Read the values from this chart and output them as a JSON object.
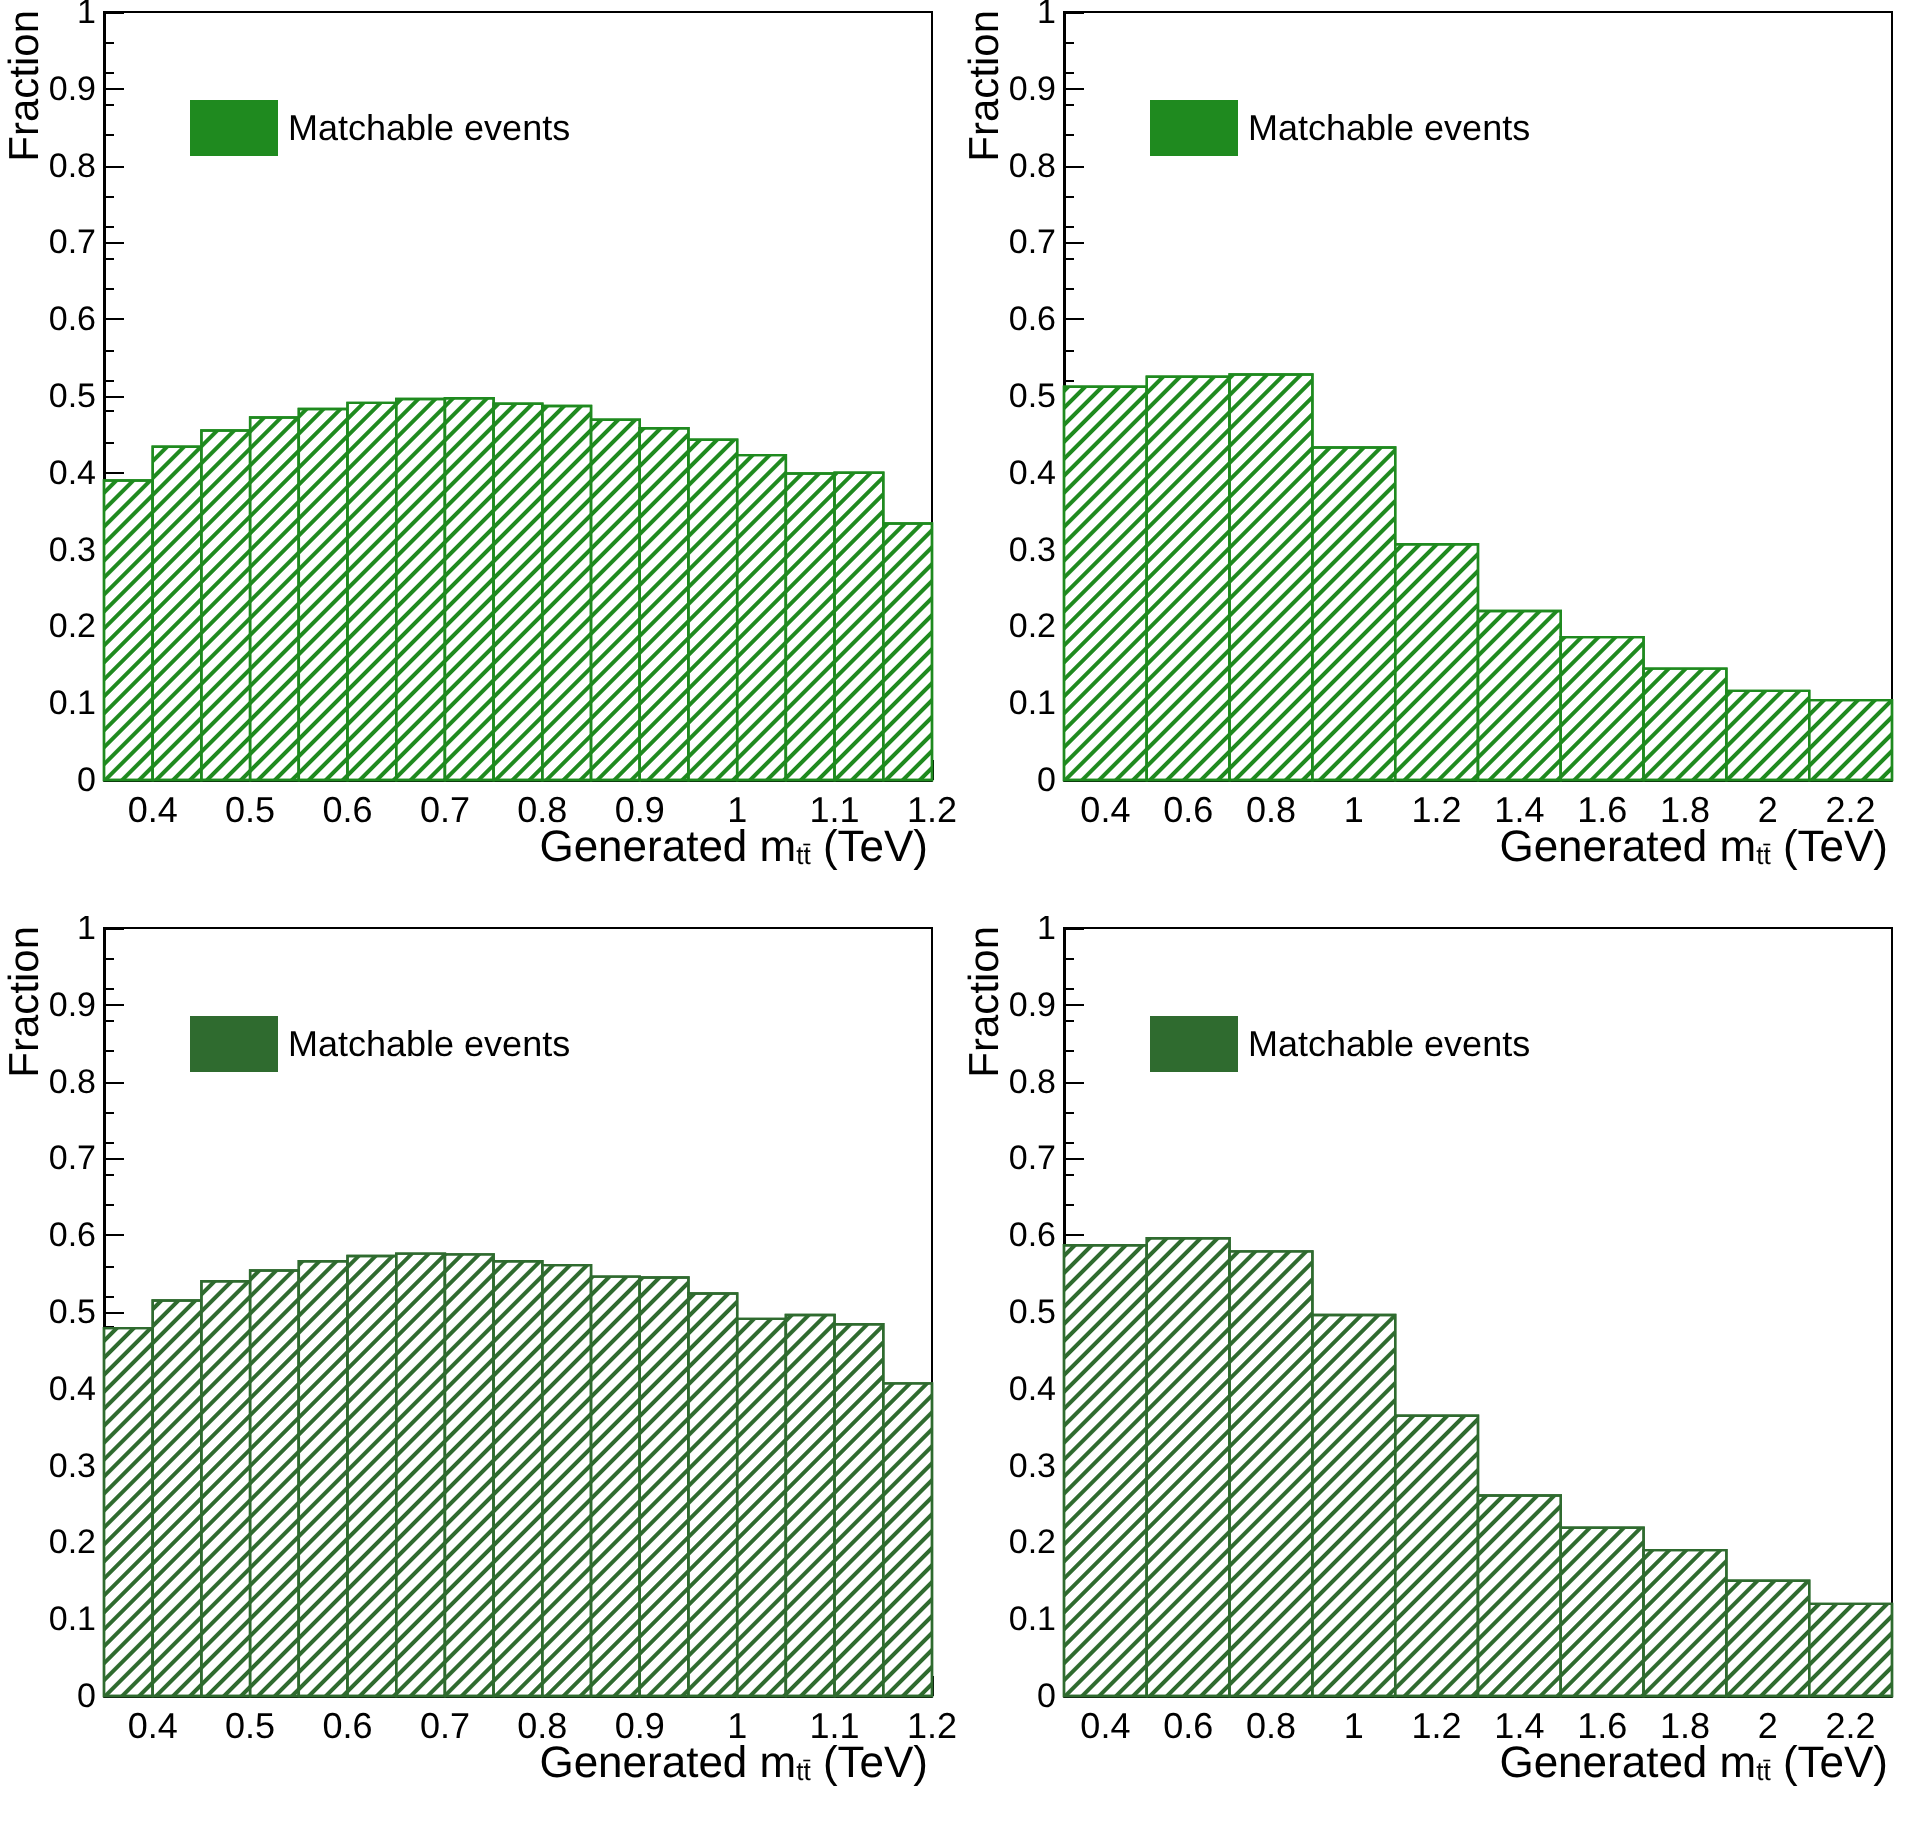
{
  "chart_data": [
    {
      "type": "histogram",
      "xlabel": "Generated m$_{tt̄}$ (TeV)",
      "ylabel": "Fraction",
      "legend": "top left",
      "grid": false,
      "bins": [
        0.35,
        0.4,
        0.45,
        0.5,
        0.55,
        0.6,
        0.65,
        0.7,
        0.75,
        0.8,
        0.85,
        0.9,
        0.95,
        1.0,
        1.05,
        1.1,
        1.15,
        1.2
      ],
      "series": [
        {
          "name": "Matchable events",
          "color": "#1f8a1f",
          "values": [
            0.39,
            0.434,
            0.455,
            0.472,
            0.483,
            0.491,
            0.496,
            0.497,
            0.49,
            0.487,
            0.469,
            0.458,
            0.443,
            0.423,
            0.399,
            0.4,
            0.334
          ]
        }
      ],
      "xlim": [
        0.35,
        1.2
      ],
      "xticks": [
        0.4,
        0.5,
        0.6,
        0.7,
        0.8,
        0.9,
        1,
        1.1,
        1.2
      ],
      "ylim": [
        0,
        1
      ],
      "yticks": [
        0,
        0.1,
        0.2,
        0.3,
        0.4,
        0.5,
        0.6,
        0.7,
        0.8,
        0.9,
        1
      ]
    },
    {
      "type": "histogram",
      "xlabel": "Generated m$_{tt̄}$ (TeV)",
      "ylabel": "Fraction",
      "legend": "top left",
      "grid": false,
      "bins": [
        0.3,
        0.5,
        0.7,
        0.9,
        1.1,
        1.3,
        1.5,
        1.7,
        1.9,
        2.1,
        2.3
      ],
      "series": [
        {
          "name": "Matchable events",
          "color": "#1f8a1f",
          "values": [
            0.512,
            0.525,
            0.528,
            0.433,
            0.307,
            0.22,
            0.186,
            0.145,
            0.116,
            0.104
          ]
        }
      ],
      "xlim": [
        0.3,
        2.3
      ],
      "xticks": [
        0.4,
        0.6,
        0.8,
        1,
        1.2,
        1.4,
        1.6,
        1.8,
        2,
        2.2
      ],
      "ylim": [
        0,
        1
      ],
      "yticks": [
        0,
        0.1,
        0.2,
        0.3,
        0.4,
        0.5,
        0.6,
        0.7,
        0.8,
        0.9,
        1
      ]
    },
    {
      "type": "histogram",
      "xlabel": "Generated m$_{tt̄}$ (TeV)",
      "ylabel": "Fraction",
      "legend": "top left",
      "grid": false,
      "bins": [
        0.35,
        0.4,
        0.45,
        0.5,
        0.55,
        0.6,
        0.65,
        0.7,
        0.75,
        0.8,
        0.85,
        0.9,
        0.95,
        1.0,
        1.05,
        1.1,
        1.15,
        1.2
      ],
      "series": [
        {
          "name": "Matchable events",
          "color": "#2f6b2f",
          "values": [
            0.479,
            0.515,
            0.54,
            0.554,
            0.566,
            0.573,
            0.576,
            0.575,
            0.566,
            0.561,
            0.546,
            0.545,
            0.524,
            0.491,
            0.496,
            0.484,
            0.407
          ]
        }
      ],
      "xlim": [
        0.35,
        1.2
      ],
      "xticks": [
        0.4,
        0.5,
        0.6,
        0.7,
        0.8,
        0.9,
        1,
        1.1,
        1.2
      ],
      "ylim": [
        0,
        1
      ],
      "yticks": [
        0,
        0.1,
        0.2,
        0.3,
        0.4,
        0.5,
        0.6,
        0.7,
        0.8,
        0.9,
        1
      ]
    },
    {
      "type": "histogram",
      "xlabel": "Generated m$_{tt̄}$ (TeV)",
      "ylabel": "Fraction",
      "legend": "top left",
      "grid": false,
      "bins": [
        0.3,
        0.5,
        0.7,
        0.9,
        1.1,
        1.3,
        1.5,
        1.7,
        1.9,
        2.1,
        2.3
      ],
      "series": [
        {
          "name": "Matchable events",
          "color": "#2f6b2f",
          "values": [
            0.587,
            0.596,
            0.579,
            0.496,
            0.365,
            0.261,
            0.219,
            0.19,
            0.15,
            0.12
          ]
        }
      ],
      "xlim": [
        0.3,
        2.3
      ],
      "xticks": [
        0.4,
        0.6,
        0.8,
        1,
        1.2,
        1.4,
        1.6,
        1.8,
        2,
        2.2
      ],
      "ylim": [
        0,
        1
      ],
      "yticks": [
        0,
        0.1,
        0.2,
        0.3,
        0.4,
        0.5,
        0.6,
        0.7,
        0.8,
        0.9,
        1
      ]
    }
  ]
}
